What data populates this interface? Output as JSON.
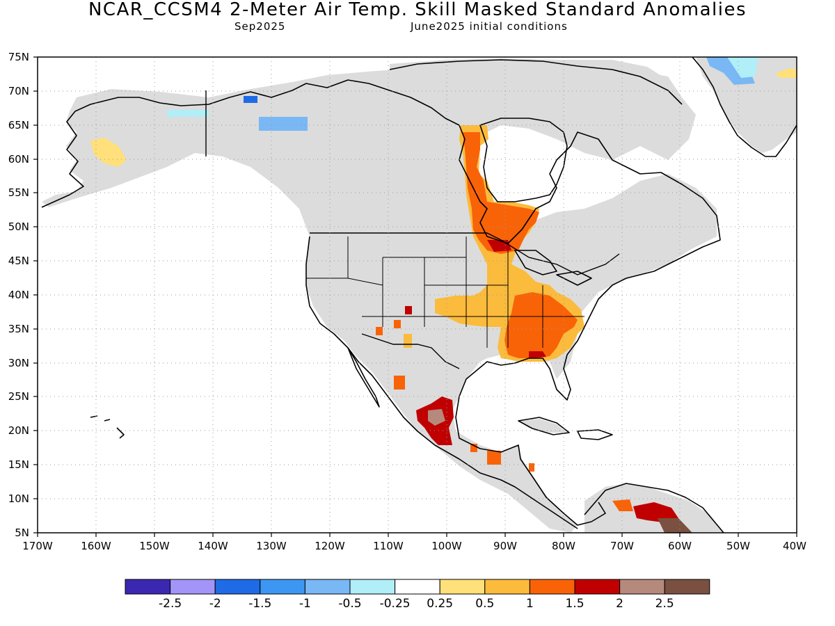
{
  "header": {
    "title": "NCAR_CCSM4 2-Meter Air Temp. Skill Masked Standard Anomalies",
    "target_month": "Sep2025",
    "initial_conditions": "June2025 initial conditions"
  },
  "map": {
    "lon_range": [
      -170,
      -40
    ],
    "lat_range": [
      5,
      75
    ],
    "lat_ticks": [
      "75N",
      "70N",
      "65N",
      "60N",
      "55N",
      "50N",
      "45N",
      "40N",
      "35N",
      "30N",
      "25N",
      "20N",
      "15N",
      "10N",
      "5N"
    ],
    "lon_ticks": [
      "170W",
      "160W",
      "150W",
      "140W",
      "130W",
      "120W",
      "110W",
      "100W",
      "90W",
      "80W",
      "70W",
      "60W",
      "50W",
      "40W"
    ],
    "masked_fill_color": "#dcdcdc",
    "grid": "dotted"
  },
  "colorbar": {
    "colors": [
      "#3b28b0",
      "#a295f7",
      "#1f6be6",
      "#3d97f2",
      "#7ab7f5",
      "#b0eef8",
      "#ffffff",
      "#ffe07a",
      "#fbbb3c",
      "#f96308",
      "#c00000",
      "#b5897c",
      "#7a5040"
    ],
    "labels": [
      "-2.5",
      "-2",
      "-1.5",
      "-1",
      "-0.5",
      "-0.25",
      "0.25",
      "0.5",
      "1",
      "1.5",
      "2",
      "2.5"
    ]
  }
}
